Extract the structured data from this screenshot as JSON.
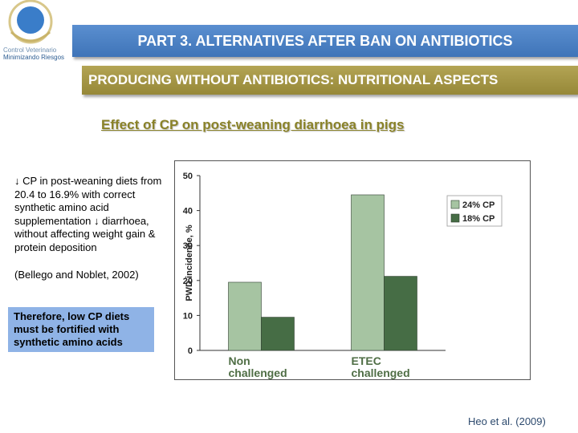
{
  "logo": {
    "line1": "Control Veterinario",
    "line2": "Minimizando Riesgos"
  },
  "header": {
    "part_title": "PART 3. ALTERNATIVES AFTER BAN ON ANTIBIOTICS",
    "section_title": "PRODUCING WITHOUT ANTIBIOTICS: NUTRITIONAL ASPECTS"
  },
  "body": {
    "bullet": "↓ CP in post-weaning diets from 20.4 to 16.9% with correct synthetic amino acid supplementation ↓ diarrhoea, without affecting weight gain & protein deposition",
    "citation": "(Bellego and Noblet, 2002)",
    "note": "Therefore, low CP diets must be fortified with synthetic amino acids"
  },
  "source": "Heo et al. (2009)",
  "colors": {
    "series_24": "#a6c4a2",
    "series_18": "#466d45",
    "category_text": "#4f6e45"
  },
  "chart_data": {
    "type": "bar",
    "title": "Effect of CP on post-weaning diarrhoea in pigs",
    "ylabel": "PWD incidence, %",
    "ylim": [
      0,
      50
    ],
    "yticks": [
      "0",
      "10",
      "20",
      "30",
      "40",
      "50"
    ],
    "categories": [
      [
        "Non",
        "challenged"
      ],
      [
        "ETEC",
        "challenged"
      ]
    ],
    "series": [
      {
        "name": "24% CP",
        "values": [
          19.5,
          44.5
        ]
      },
      {
        "name": "18% CP",
        "values": [
          9.5,
          21.2
        ]
      }
    ],
    "legend": "right"
  }
}
